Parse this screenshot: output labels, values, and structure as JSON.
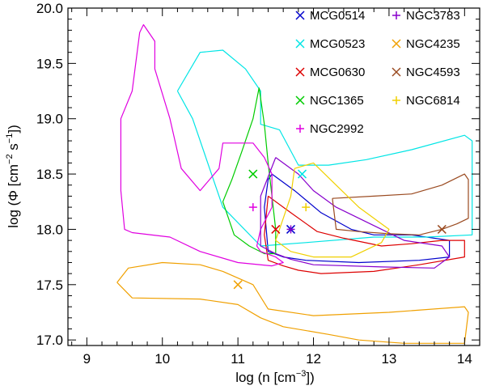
{
  "chart_data": {
    "type": "line",
    "xlabel": "log (n [cm",
    "xlabel_sup": "−3",
    "xlabel_end": "])",
    "ylabel": "log (Φ [cm",
    "ylabel_sup1": "−2",
    "ylabel_mid": " s",
    "ylabel_sup2": "−1",
    "ylabel_end": "])",
    "xlim": [
      8.75,
      14.2
    ],
    "ylim": [
      16.95,
      20.0
    ],
    "xticks": [
      9,
      10,
      11,
      12,
      13,
      14
    ],
    "yticks": [
      17.0,
      17.5,
      18.0,
      18.5,
      19.0,
      19.5,
      20.0
    ],
    "xtick_labels": [
      "9",
      "10",
      "11",
      "12",
      "13",
      "14"
    ],
    "ytick_labels": [
      "17.0",
      "17.5",
      "18.0",
      "18.5",
      "19.0",
      "19.5",
      "20.0"
    ],
    "legend_position": "top-right",
    "series": [
      {
        "name": "MCG0514",
        "color": "#0000cc",
        "marker": "x",
        "point": [
          11.7,
          18.0
        ],
        "contour": [
          [
            11.45,
            18.5
          ],
          [
            11.75,
            18.35
          ],
          [
            12.1,
            18.15
          ],
          [
            12.5,
            18.0
          ],
          [
            12.8,
            17.95
          ],
          [
            13.3,
            17.95
          ],
          [
            13.8,
            17.9
          ],
          [
            13.8,
            17.75
          ],
          [
            13.4,
            17.72
          ],
          [
            12.6,
            17.7
          ],
          [
            11.9,
            17.72
          ],
          [
            11.6,
            17.75
          ],
          [
            11.4,
            17.8
          ],
          [
            11.35,
            18.2
          ],
          [
            11.4,
            18.45
          ],
          [
            11.45,
            18.5
          ]
        ]
      },
      {
        "name": "MCG0523",
        "color": "#00e5e5",
        "marker": "x",
        "point": [
          11.85,
          18.5
        ],
        "contour": [
          [
            10.2,
            19.25
          ],
          [
            10.5,
            19.6
          ],
          [
            10.8,
            19.62
          ],
          [
            11.1,
            19.45
          ],
          [
            11.3,
            19.25
          ],
          [
            11.3,
            18.95
          ],
          [
            11.55,
            18.9
          ],
          [
            11.8,
            18.58
          ],
          [
            12.2,
            18.58
          ],
          [
            12.7,
            18.63
          ],
          [
            13.3,
            18.72
          ],
          [
            14.0,
            18.85
          ],
          [
            14.1,
            18.8
          ],
          [
            14.1,
            17.95
          ],
          [
            13.5,
            17.93
          ],
          [
            12.8,
            17.93
          ],
          [
            11.9,
            17.88
          ],
          [
            11.3,
            17.85
          ],
          [
            10.8,
            18.2
          ],
          [
            10.6,
            18.6
          ],
          [
            10.4,
            19.0
          ],
          [
            10.2,
            19.25
          ]
        ]
      },
      {
        "name": "MCG0630",
        "color": "#dd0000",
        "marker": "x",
        "point": [
          11.5,
          18.0
        ],
        "contour": [
          [
            11.4,
            18.3
          ],
          [
            11.7,
            18.15
          ],
          [
            12.05,
            17.98
          ],
          [
            12.4,
            17.92
          ],
          [
            12.9,
            17.85
          ],
          [
            13.3,
            17.87
          ],
          [
            13.7,
            17.9
          ],
          [
            14.0,
            17.9
          ],
          [
            14.0,
            17.75
          ],
          [
            13.4,
            17.68
          ],
          [
            12.8,
            17.62
          ],
          [
            12.1,
            17.6
          ],
          [
            11.8,
            17.63
          ],
          [
            11.6,
            17.67
          ],
          [
            11.4,
            17.72
          ],
          [
            11.35,
            17.95
          ],
          [
            11.4,
            18.3
          ]
        ]
      },
      {
        "name": "NGC1365",
        "color": "#00cc00",
        "marker": "x",
        "point": [
          11.2,
          18.5
        ],
        "contour": [
          [
            11.28,
            19.28
          ],
          [
            11.2,
            19.0
          ],
          [
            11.05,
            18.7
          ],
          [
            10.92,
            18.45
          ],
          [
            10.8,
            18.25
          ],
          [
            10.95,
            17.95
          ],
          [
            11.15,
            17.85
          ],
          [
            11.35,
            17.78
          ],
          [
            11.5,
            17.78
          ],
          [
            11.5,
            18.0
          ],
          [
            11.45,
            18.3
          ],
          [
            11.4,
            18.6
          ],
          [
            11.35,
            18.95
          ],
          [
            11.28,
            19.28
          ]
        ]
      },
      {
        "name": "NGC2992",
        "color": "#e000e0",
        "marker": "+",
        "point": [
          11.2,
          18.2
        ],
        "contour": [
          [
            9.7,
            19.78
          ],
          [
            9.75,
            19.85
          ],
          [
            9.9,
            19.7
          ],
          [
            9.9,
            19.45
          ],
          [
            10.1,
            19.0
          ],
          [
            10.25,
            18.55
          ],
          [
            10.5,
            18.35
          ],
          [
            10.75,
            18.55
          ],
          [
            10.8,
            18.78
          ],
          [
            11.2,
            18.78
          ],
          [
            11.35,
            18.65
          ],
          [
            11.45,
            18.5
          ],
          [
            11.45,
            18.2
          ],
          [
            11.3,
            18.0
          ],
          [
            11.25,
            17.85
          ],
          [
            11.3,
            17.8
          ],
          [
            11.5,
            17.75
          ],
          [
            11.6,
            17.7
          ],
          [
            11.45,
            17.67
          ],
          [
            11.0,
            17.7
          ],
          [
            10.5,
            17.8
          ],
          [
            10.1,
            17.93
          ],
          [
            9.6,
            17.97
          ],
          [
            9.5,
            18.0
          ],
          [
            9.45,
            18.35
          ],
          [
            9.45,
            19.0
          ],
          [
            9.6,
            19.25
          ],
          [
            9.7,
            19.78
          ]
        ]
      },
      {
        "name": "NGC3783",
        "color": "#8800cc",
        "marker": "+",
        "point": [
          11.7,
          18.0
        ],
        "contour": [
          [
            11.5,
            18.65
          ],
          [
            11.8,
            18.5
          ],
          [
            12.0,
            18.35
          ],
          [
            12.3,
            18.2
          ],
          [
            12.75,
            18.05
          ],
          [
            13.2,
            17.9
          ],
          [
            13.7,
            17.85
          ],
          [
            13.8,
            17.75
          ],
          [
            13.6,
            17.65
          ],
          [
            12.9,
            17.66
          ],
          [
            12.0,
            17.68
          ],
          [
            11.7,
            17.73
          ],
          [
            11.5,
            17.78
          ],
          [
            11.3,
            17.85
          ],
          [
            11.3,
            18.3
          ],
          [
            11.5,
            18.65
          ]
        ]
      },
      {
        "name": "NGC4235",
        "color": "#f0a000",
        "marker": "x",
        "point": [
          11.0,
          17.5
        ],
        "contour": [
          [
            9.4,
            17.52
          ],
          [
            9.55,
            17.65
          ],
          [
            10.0,
            17.7
          ],
          [
            10.5,
            17.68
          ],
          [
            10.8,
            17.62
          ],
          [
            11.2,
            17.5
          ],
          [
            11.4,
            17.28
          ],
          [
            12.0,
            17.22
          ],
          [
            13.0,
            17.25
          ],
          [
            14.0,
            17.3
          ],
          [
            14.05,
            17.25
          ],
          [
            14.0,
            16.97
          ],
          [
            13.2,
            16.97
          ],
          [
            12.6,
            17.0
          ],
          [
            12.2,
            17.05
          ],
          [
            11.6,
            17.12
          ],
          [
            11.3,
            17.2
          ],
          [
            11.0,
            17.32
          ],
          [
            10.5,
            17.37
          ],
          [
            9.6,
            17.38
          ],
          [
            9.4,
            17.52
          ]
        ]
      },
      {
        "name": "NGC4593",
        "color": "#9a4a20",
        "marker": "x",
        "point": [
          13.7,
          18.0
        ],
        "contour": [
          [
            12.25,
            18.28
          ],
          [
            12.8,
            18.3
          ],
          [
            13.3,
            18.32
          ],
          [
            13.7,
            18.4
          ],
          [
            14.0,
            18.5
          ],
          [
            14.05,
            18.45
          ],
          [
            14.05,
            18.1
          ],
          [
            13.9,
            18.05
          ],
          [
            13.7,
            18.0
          ],
          [
            13.4,
            17.95
          ],
          [
            13.0,
            17.96
          ],
          [
            12.6,
            17.98
          ],
          [
            12.3,
            18.0
          ],
          [
            12.25,
            18.28
          ]
        ]
      },
      {
        "name": "NGC6814",
        "color": "#f0d000",
        "marker": "+",
        "point": [
          11.9,
          18.2
        ],
        "contour": [
          [
            11.75,
            18.55
          ],
          [
            12.0,
            18.6
          ],
          [
            12.3,
            18.4
          ],
          [
            12.6,
            18.2
          ],
          [
            12.9,
            18.05
          ],
          [
            13.0,
            18.0
          ],
          [
            12.9,
            17.88
          ],
          [
            12.5,
            17.75
          ],
          [
            12.0,
            17.75
          ],
          [
            11.7,
            17.8
          ],
          [
            11.5,
            17.9
          ],
          [
            11.6,
            18.1
          ],
          [
            11.7,
            18.3
          ],
          [
            11.75,
            18.55
          ]
        ]
      }
    ]
  }
}
